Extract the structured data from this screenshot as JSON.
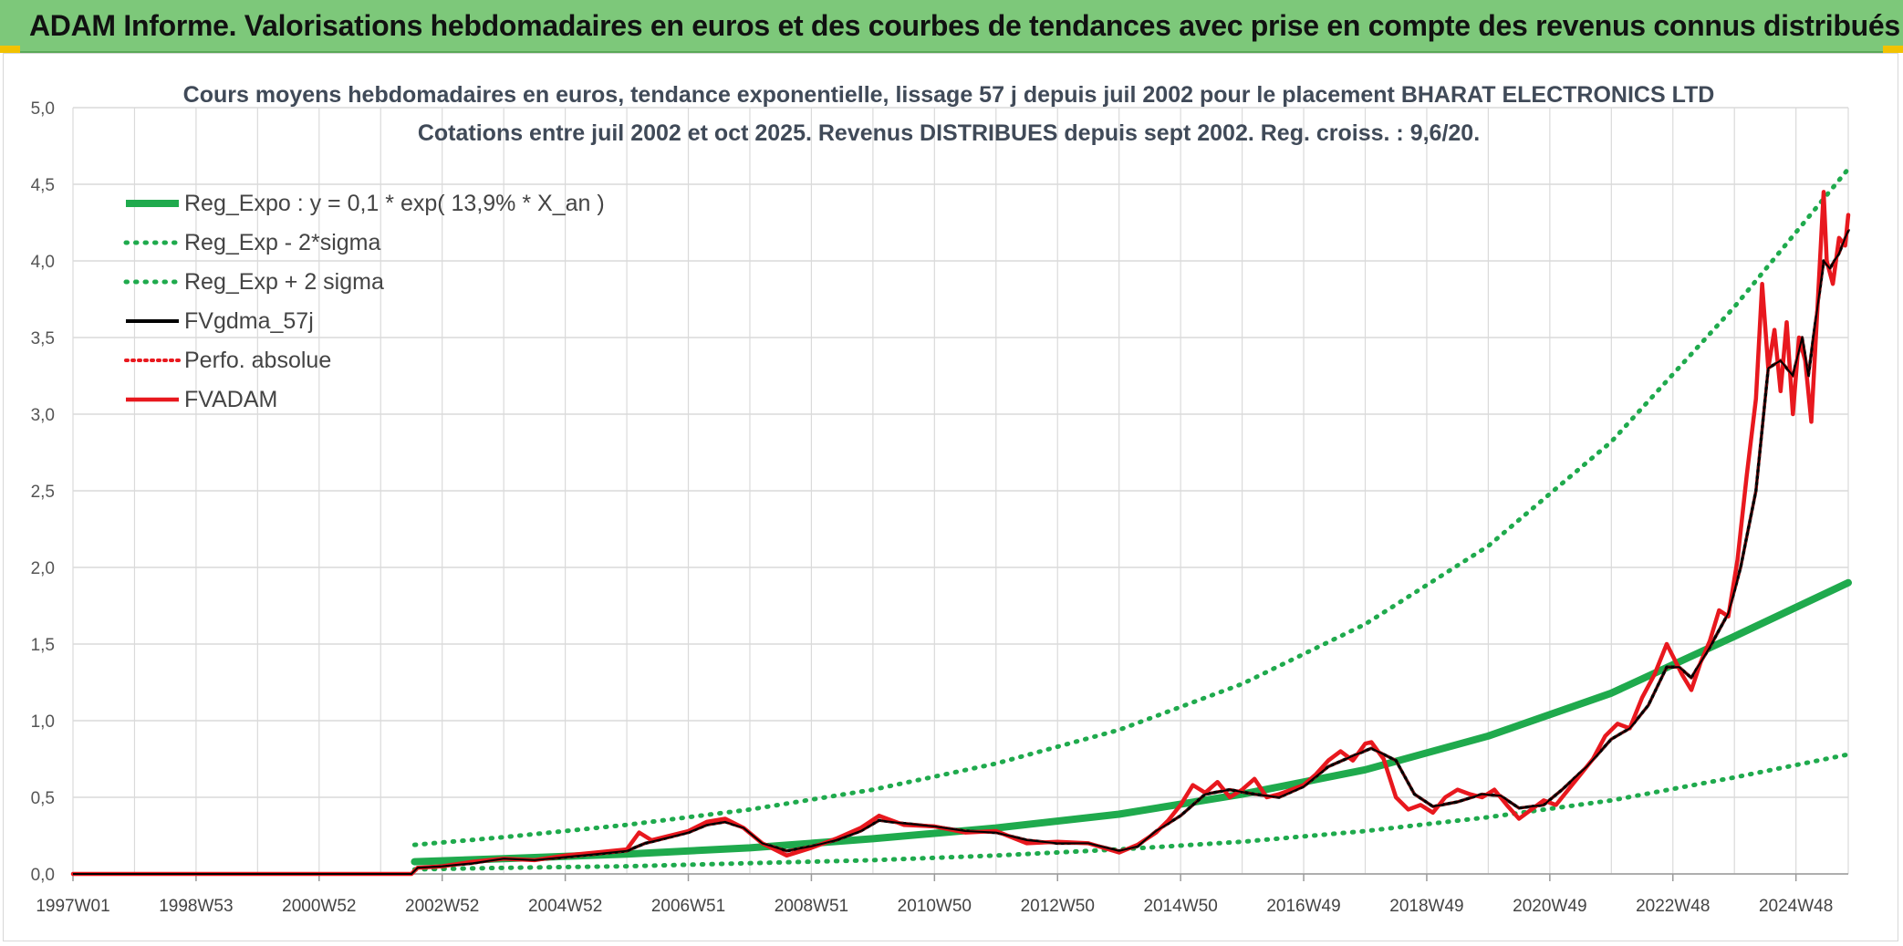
{
  "banner": {
    "title": "ADAM Informe. Valorisations hebdomadaires en euros et des courbes de tendances avec prise en compte des revenus connus distribués"
  },
  "colors": {
    "banner_bg": "#7dc87a",
    "reg_green": "#1faa4d",
    "fvgdma_black": "#000000",
    "fvadam_red": "#e8181e",
    "grid": "#dadada"
  },
  "chart_data": {
    "type": "line",
    "title": "Cours moyens hebdomadaires en euros, tendance exponentielle, lissage 57 j depuis juil 2002 pour le placement BHARAT ELECTRONICS LTD",
    "subtitle": "Cotations entre juil 2002 et oct 2025. Revenus DISTRIBUES depuis sept 2002. Reg. croiss. : 9,6/20.",
    "xlabel": "",
    "ylabel": "",
    "x_range": [
      1997.0,
      2025.85
    ],
    "ylim": [
      0,
      5
    ],
    "y_ticks": [
      "0,0",
      "0,5",
      "1,0",
      "1,5",
      "2,0",
      "2,5",
      "3,0",
      "3,5",
      "4,0",
      "4,5",
      "5,0"
    ],
    "x_ticks": [
      {
        "label": "1997W01",
        "x": 1997.0
      },
      {
        "label": "1998W53",
        "x": 1999.0
      },
      {
        "label": "2000W52",
        "x": 2001.0
      },
      {
        "label": "2002W52",
        "x": 2003.0
      },
      {
        "label": "2004W52",
        "x": 2005.0
      },
      {
        "label": "2006W51",
        "x": 2007.0
      },
      {
        "label": "2008W51",
        "x": 2009.0
      },
      {
        "label": "2010W50",
        "x": 2011.0
      },
      {
        "label": "2012W50",
        "x": 2013.0
      },
      {
        "label": "2014W50",
        "x": 2015.0
      },
      {
        "label": "2016W49",
        "x": 2017.0
      },
      {
        "label": "2018W49",
        "x": 2019.0
      },
      {
        "label": "2020W49",
        "x": 2021.0
      },
      {
        "label": "2022W48",
        "x": 2023.0
      },
      {
        "label": "2024W48",
        "x": 2025.0
      }
    ],
    "grid": true,
    "legend_position": "top-left",
    "series": [
      {
        "name": "Reg_Expo : y = 0,1 * exp( 13,9% *  X_an )",
        "color": "#1faa4d",
        "style": "solid",
        "x": [
          2002.55,
          2004,
          2006,
          2008,
          2010,
          2012,
          2014,
          2016,
          2018,
          2020,
          2022,
          2024,
          2025.85
        ],
        "y": [
          0.08,
          0.1,
          0.13,
          0.17,
          0.23,
          0.3,
          0.39,
          0.52,
          0.68,
          0.9,
          1.18,
          1.55,
          1.9
        ]
      },
      {
        "name": "Reg_Exp - 2*sigma",
        "color": "#1faa4d",
        "style": "dotted",
        "x": [
          2002.55,
          2004,
          2006,
          2008,
          2010,
          2012,
          2014,
          2016,
          2018,
          2020,
          2022,
          2024,
          2025.85
        ],
        "y": [
          0.03,
          0.04,
          0.05,
          0.07,
          0.09,
          0.12,
          0.16,
          0.21,
          0.28,
          0.37,
          0.48,
          0.63,
          0.78
        ]
      },
      {
        "name": "Reg_Exp + 2 sigma",
        "color": "#1faa4d",
        "style": "dotted",
        "x": [
          2002.55,
          2004,
          2006,
          2008,
          2010,
          2012,
          2014,
          2016,
          2018,
          2020,
          2022,
          2024,
          2025.85
        ],
        "y": [
          0.19,
          0.24,
          0.32,
          0.42,
          0.55,
          0.72,
          0.94,
          1.24,
          1.63,
          2.14,
          2.82,
          3.7,
          4.6
        ]
      },
      {
        "name": "FVgdma_57j",
        "color": "#000000",
        "style": "solid",
        "x": [
          1997.0,
          2002.5,
          2002.6,
          2003.0,
          2003.5,
          2004.0,
          2004.5,
          2005.0,
          2005.5,
          2006.0,
          2006.3,
          2006.7,
          2007.0,
          2007.3,
          2007.6,
          2007.9,
          2008.2,
          2008.6,
          2009.0,
          2009.4,
          2009.8,
          2010.1,
          2010.5,
          2011.0,
          2011.5,
          2012.0,
          2012.5,
          2013.0,
          2013.5,
          2014.0,
          2014.3,
          2014.6,
          2015.0,
          2015.4,
          2015.8,
          2016.2,
          2016.6,
          2017.0,
          2017.4,
          2017.8,
          2018.1,
          2018.5,
          2018.8,
          2019.1,
          2019.5,
          2019.9,
          2020.2,
          2020.5,
          2020.9,
          2021.2,
          2021.6,
          2022.0,
          2022.3,
          2022.6,
          2022.9,
          2023.1,
          2023.3,
          2023.6,
          2023.9,
          2024.1,
          2024.35,
          2024.55,
          2024.75,
          2024.95,
          2025.1,
          2025.2,
          2025.35,
          2025.45,
          2025.55,
          2025.7,
          2025.85
        ],
        "y": [
          0,
          0,
          0.04,
          0.05,
          0.07,
          0.1,
          0.09,
          0.11,
          0.13,
          0.15,
          0.2,
          0.24,
          0.27,
          0.32,
          0.34,
          0.3,
          0.2,
          0.15,
          0.18,
          0.22,
          0.28,
          0.35,
          0.33,
          0.31,
          0.28,
          0.27,
          0.22,
          0.2,
          0.2,
          0.15,
          0.18,
          0.28,
          0.38,
          0.52,
          0.55,
          0.52,
          0.5,
          0.57,
          0.7,
          0.77,
          0.82,
          0.74,
          0.52,
          0.44,
          0.47,
          0.52,
          0.51,
          0.43,
          0.45,
          0.55,
          0.7,
          0.88,
          0.95,
          1.1,
          1.35,
          1.35,
          1.28,
          1.48,
          1.7,
          2.0,
          2.5,
          3.3,
          3.35,
          3.25,
          3.5,
          3.25,
          3.7,
          4.0,
          3.95,
          4.05,
          4.2
        ]
      },
      {
        "name": "Perfo. absolue",
        "color": "#e8181e",
        "style": "dotted",
        "x": [
          1997.0,
          2002.5,
          2002.6,
          2003.0,
          2003.5,
          2004.0,
          2004.5,
          2005.0,
          2005.5,
          2006.0,
          2006.3,
          2006.7,
          2007.0,
          2007.3,
          2007.6,
          2007.9,
          2008.2,
          2008.6,
          2009.0,
          2009.4,
          2009.8,
          2010.1,
          2010.5,
          2011.0,
          2011.5,
          2012.0,
          2012.5,
          2013.0,
          2013.5,
          2014.0,
          2014.3,
          2014.6,
          2015.0,
          2015.4,
          2015.8,
          2016.2,
          2016.6,
          2017.0,
          2017.4,
          2017.8,
          2018.1,
          2018.5,
          2018.8,
          2019.1,
          2019.5,
          2019.9,
          2020.2,
          2020.5,
          2020.9,
          2021.2,
          2021.6,
          2022.0,
          2022.3,
          2022.6,
          2022.9,
          2023.1,
          2023.3,
          2023.6,
          2023.9,
          2024.1,
          2024.35,
          2024.55,
          2024.75,
          2024.95,
          2025.1,
          2025.2,
          2025.35,
          2025.45,
          2025.55,
          2025.7,
          2025.85
        ],
        "y": [
          0,
          0,
          0.04,
          0.05,
          0.07,
          0.1,
          0.09,
          0.11,
          0.13,
          0.15,
          0.2,
          0.24,
          0.27,
          0.32,
          0.34,
          0.3,
          0.2,
          0.15,
          0.18,
          0.22,
          0.28,
          0.35,
          0.33,
          0.31,
          0.28,
          0.27,
          0.22,
          0.2,
          0.2,
          0.15,
          0.18,
          0.28,
          0.38,
          0.52,
          0.55,
          0.52,
          0.5,
          0.57,
          0.7,
          0.77,
          0.82,
          0.74,
          0.52,
          0.44,
          0.47,
          0.52,
          0.51,
          0.43,
          0.45,
          0.55,
          0.7,
          0.88,
          0.95,
          1.1,
          1.35,
          1.35,
          1.28,
          1.48,
          1.7,
          2.0,
          2.5,
          3.3,
          3.35,
          3.25,
          3.5,
          3.25,
          3.7,
          4.0,
          3.95,
          4.05,
          4.2
        ]
      },
      {
        "name": "FVADAM",
        "color": "#e8181e",
        "style": "solid",
        "x": [
          1997.0,
          2002.5,
          2002.6,
          2003.0,
          2003.5,
          2004.0,
          2004.5,
          2005.0,
          2005.5,
          2006.0,
          2006.2,
          2006.4,
          2006.7,
          2007.0,
          2007.3,
          2007.6,
          2007.9,
          2008.2,
          2008.6,
          2009.0,
          2009.4,
          2009.8,
          2010.1,
          2010.5,
          2011.0,
          2011.5,
          2012.0,
          2012.5,
          2013.0,
          2013.5,
          2014.0,
          2014.3,
          2014.6,
          2014.8,
          2015.0,
          2015.2,
          2015.4,
          2015.6,
          2015.8,
          2016.0,
          2016.2,
          2016.4,
          2016.6,
          2016.8,
          2017.0,
          2017.2,
          2017.4,
          2017.6,
          2017.8,
          2018.0,
          2018.1,
          2018.3,
          2018.5,
          2018.7,
          2018.9,
          2019.1,
          2019.3,
          2019.5,
          2019.7,
          2019.9,
          2020.1,
          2020.3,
          2020.5,
          2020.7,
          2020.9,
          2021.1,
          2021.3,
          2021.5,
          2021.7,
          2021.9,
          2022.1,
          2022.3,
          2022.5,
          2022.7,
          2022.9,
          2023.0,
          2023.15,
          2023.3,
          2023.45,
          2023.6,
          2023.75,
          2023.9,
          2024.05,
          2024.2,
          2024.35,
          2024.45,
          2024.55,
          2024.65,
          2024.75,
          2024.85,
          2024.95,
          2025.05,
          2025.15,
          2025.25,
          2025.35,
          2025.45,
          2025.5,
          2025.6,
          2025.7,
          2025.8,
          2025.85
        ],
        "y": [
          0,
          0,
          0.04,
          0.05,
          0.08,
          0.1,
          0.09,
          0.12,
          0.14,
          0.16,
          0.27,
          0.22,
          0.25,
          0.28,
          0.34,
          0.36,
          0.3,
          0.2,
          0.12,
          0.17,
          0.23,
          0.3,
          0.38,
          0.32,
          0.31,
          0.27,
          0.28,
          0.2,
          0.21,
          0.2,
          0.14,
          0.19,
          0.27,
          0.35,
          0.45,
          0.58,
          0.53,
          0.6,
          0.5,
          0.55,
          0.62,
          0.5,
          0.52,
          0.55,
          0.58,
          0.65,
          0.74,
          0.8,
          0.74,
          0.85,
          0.86,
          0.75,
          0.5,
          0.42,
          0.45,
          0.4,
          0.5,
          0.55,
          0.52,
          0.5,
          0.55,
          0.45,
          0.36,
          0.42,
          0.48,
          0.45,
          0.55,
          0.65,
          0.75,
          0.9,
          0.98,
          0.95,
          1.15,
          1.3,
          1.5,
          1.42,
          1.3,
          1.2,
          1.38,
          1.52,
          1.72,
          1.68,
          2.05,
          2.6,
          3.1,
          3.85,
          3.3,
          3.55,
          3.15,
          3.6,
          3.0,
          3.5,
          3.35,
          2.95,
          3.7,
          4.45,
          4.0,
          3.85,
          4.15,
          4.1,
          4.3
        ]
      }
    ]
  }
}
